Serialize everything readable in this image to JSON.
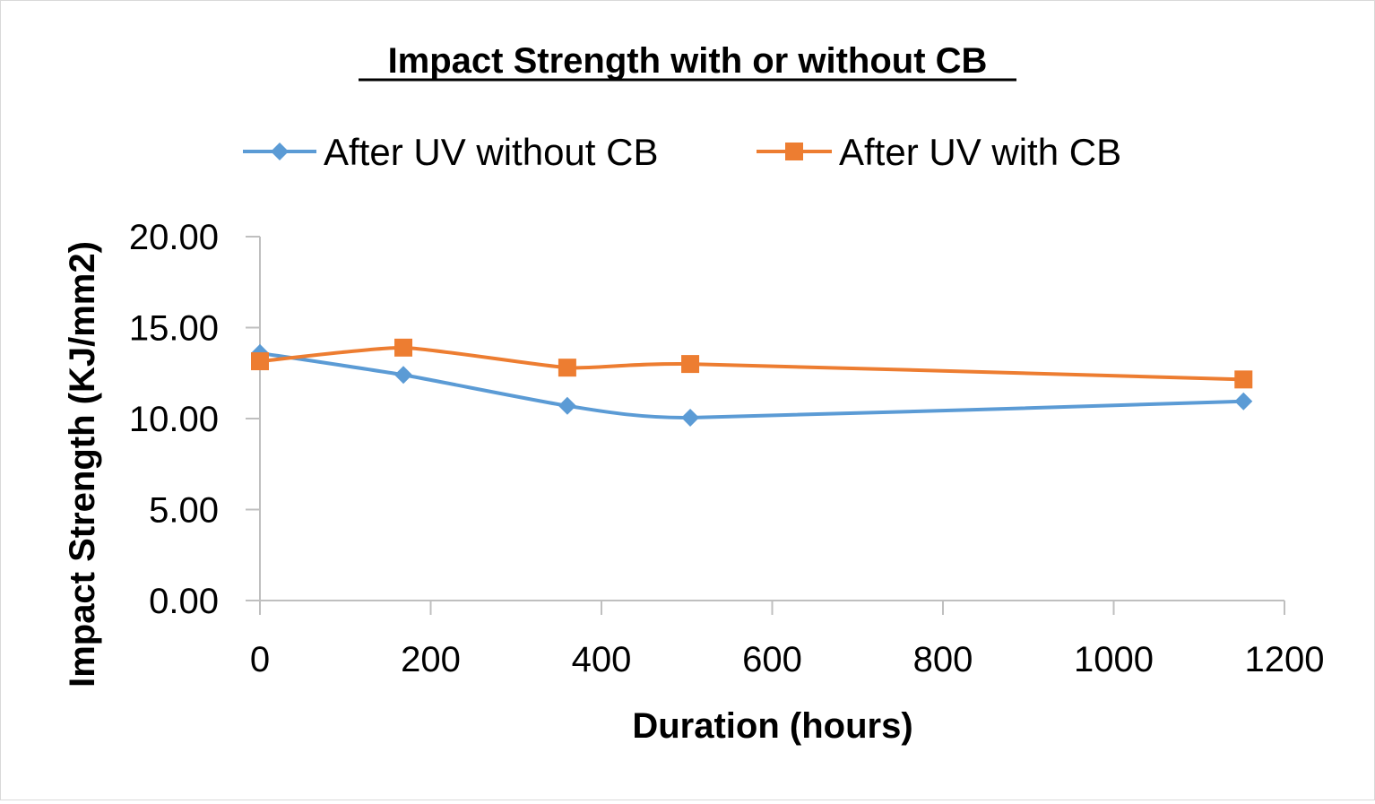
{
  "chart_data": {
    "type": "line",
    "title": "Impact Strength with or without CB",
    "xlabel": "Duration (hours)",
    "ylabel": "Impact Strength (KJ/mm2)",
    "xlim": [
      0,
      1200
    ],
    "ylim": [
      0,
      20
    ],
    "x_ticks": [
      0,
      200,
      400,
      600,
      800,
      1000,
      1200
    ],
    "x_tick_labels": [
      "0",
      "200",
      "400",
      "600",
      "800",
      "1000",
      "1200"
    ],
    "y_ticks": [
      0,
      5,
      10,
      15,
      20
    ],
    "y_tick_labels": [
      "0.00",
      "5.00",
      "10.00",
      "15.00",
      "20.00"
    ],
    "legend_position": "top",
    "grid": false,
    "series": [
      {
        "name": "After UV without CB",
        "color": "#5b9bd5",
        "marker": "diamond",
        "smooth": true,
        "x": [
          0,
          168,
          360,
          504,
          1152
        ],
        "y": [
          13.6,
          12.4,
          10.7,
          10.05,
          10.95
        ]
      },
      {
        "name": "After UV with CB",
        "color": "#ed7d31",
        "marker": "square",
        "smooth": true,
        "x": [
          0,
          168,
          360,
          504,
          1152
        ],
        "y": [
          13.15,
          13.9,
          12.8,
          13.0,
          12.15
        ]
      }
    ]
  }
}
